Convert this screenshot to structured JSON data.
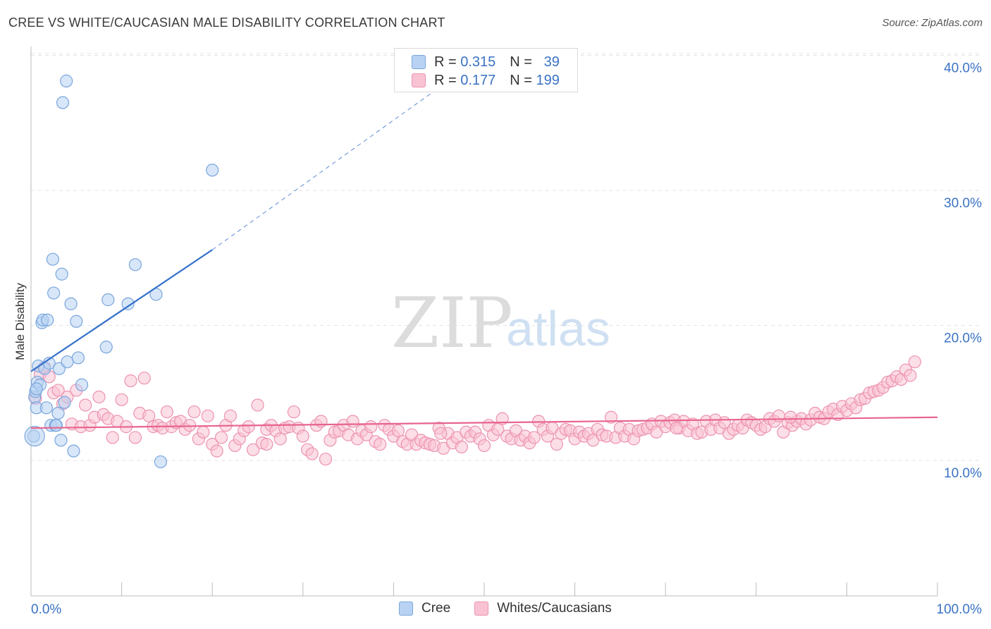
{
  "title": "CREE VS WHITE/CAUCASIAN MALE DISABILITY CORRELATION CHART",
  "source": "Source: ZipAtlas.com",
  "watermark": {
    "zip": "ZIP",
    "atlas": "atlas"
  },
  "colors": {
    "cree_fill": "#b7d2f2",
    "cree_stroke": "#7aa6dd",
    "cree_line": "#3370cc",
    "white_fill": "#f9c2d3",
    "white_stroke": "#ec93b0",
    "white_line": "#e7648f",
    "axis_text": "#3a72c4",
    "grid": "#e3e3e3"
  },
  "legend": {
    "rows": [
      {
        "r_label": "R =",
        "r_value": "0.315",
        "n_label": "N =",
        "n_value": "39"
      },
      {
        "r_label": "R =",
        "r_value": "0.177",
        "n_label": "N =",
        "n_value": "199"
      }
    ]
  },
  "bottom_legend": [
    "Cree",
    "Whites/Caucasians"
  ],
  "chart_data": {
    "type": "scatter",
    "title": "CREE VS WHITE/CAUCASIAN MALE DISABILITY CORRELATION CHART",
    "xlabel": "",
    "ylabel": "Male Disability",
    "xlim": [
      0,
      100
    ],
    "ylim": [
      0,
      42
    ],
    "x_tick_labels": [
      "0.0%",
      "100.0%"
    ],
    "y_ticks": [
      10,
      20,
      30,
      40
    ],
    "y_tick_labels": [
      "10.0%",
      "20.0%",
      "30.0%",
      "40.0%"
    ],
    "legend_position": "top-center",
    "series": [
      {
        "name": "Cree",
        "R": 0.315,
        "N": 39,
        "trend": {
          "x0": 0.0,
          "y0": 16.6,
          "x1": 20.0,
          "y1": 25.6,
          "dashed_to_x": 50.0,
          "dashed_to_y": 40.0
        },
        "points": [
          [
            0.3,
            11.8
          ],
          [
            0.4,
            14.7
          ],
          [
            0.5,
            15.1
          ],
          [
            0.6,
            13.9
          ],
          [
            0.7,
            15.8
          ],
          [
            0.8,
            17.0
          ],
          [
            1.0,
            15.6
          ],
          [
            1.2,
            20.2
          ],
          [
            1.3,
            20.4
          ],
          [
            1.5,
            16.8
          ],
          [
            1.7,
            13.9
          ],
          [
            1.8,
            20.4
          ],
          [
            2.0,
            17.2
          ],
          [
            2.2,
            12.6
          ],
          [
            2.4,
            24.9
          ],
          [
            2.5,
            22.4
          ],
          [
            2.7,
            12.6
          ],
          [
            2.8,
            12.6
          ],
          [
            3.0,
            13.5
          ],
          [
            3.1,
            16.8
          ],
          [
            3.3,
            11.5
          ],
          [
            3.4,
            23.8
          ],
          [
            3.5,
            36.5
          ],
          [
            3.7,
            14.3
          ],
          [
            3.9,
            38.1
          ],
          [
            4.0,
            17.3
          ],
          [
            4.4,
            21.6
          ],
          [
            4.7,
            10.7
          ],
          [
            5.0,
            20.3
          ],
          [
            5.2,
            17.6
          ],
          [
            5.6,
            15.6
          ],
          [
            8.3,
            18.4
          ],
          [
            8.5,
            21.9
          ],
          [
            10.7,
            21.6
          ],
          [
            11.5,
            24.5
          ],
          [
            13.8,
            22.3
          ],
          [
            14.3,
            9.9
          ],
          [
            20.0,
            31.5
          ],
          [
            0.6,
            15.3
          ]
        ]
      },
      {
        "name": "Whites/Caucasians",
        "R": 0.177,
        "N": 199,
        "trend": {
          "x0": 0.0,
          "y0": 12.4,
          "x1": 100.0,
          "y1": 13.2
        },
        "points": [
          [
            0.5,
            14.6
          ],
          [
            1.0,
            16.4
          ],
          [
            1.5,
            16.9
          ],
          [
            2.0,
            16.2
          ],
          [
            2.5,
            15.0
          ],
          [
            3.0,
            15.2
          ],
          [
            3.5,
            14.2
          ],
          [
            4.0,
            14.7
          ],
          [
            4.5,
            12.7
          ],
          [
            5.0,
            15.2
          ],
          [
            5.5,
            12.5
          ],
          [
            6.0,
            14.1
          ],
          [
            6.5,
            12.6
          ],
          [
            7.0,
            13.2
          ],
          [
            7.5,
            14.7
          ],
          [
            8.0,
            13.4
          ],
          [
            8.5,
            13.1
          ],
          [
            9.0,
            11.7
          ],
          [
            9.5,
            12.9
          ],
          [
            10.0,
            14.5
          ],
          [
            10.5,
            12.5
          ],
          [
            11.0,
            15.9
          ],
          [
            11.5,
            11.7
          ],
          [
            12.0,
            13.5
          ],
          [
            12.5,
            16.1
          ],
          [
            13.0,
            13.3
          ],
          [
            13.5,
            12.5
          ],
          [
            14.0,
            12.6
          ],
          [
            14.5,
            12.4
          ],
          [
            15.0,
            13.6
          ],
          [
            15.5,
            12.5
          ],
          [
            16.0,
            12.8
          ],
          [
            16.5,
            12.9
          ],
          [
            17.0,
            12.3
          ],
          [
            17.5,
            12.6
          ],
          [
            18.0,
            13.6
          ],
          [
            18.5,
            11.6
          ],
          [
            19.0,
            12.1
          ],
          [
            19.5,
            13.3
          ],
          [
            20.0,
            11.2
          ],
          [
            20.5,
            10.7
          ],
          [
            21.0,
            11.7
          ],
          [
            21.5,
            12.6
          ],
          [
            22.0,
            13.3
          ],
          [
            22.5,
            11.1
          ],
          [
            23.0,
            11.6
          ],
          [
            23.5,
            12.2
          ],
          [
            24.0,
            12.5
          ],
          [
            24.5,
            10.8
          ],
          [
            25.0,
            14.1
          ],
          [
            25.5,
            11.3
          ],
          [
            26.0,
            12.3
          ],
          [
            26.5,
            12.6
          ],
          [
            27.0,
            12.2
          ],
          [
            27.5,
            11.6
          ],
          [
            28.0,
            12.4
          ],
          [
            28.5,
            12.5
          ],
          [
            29.0,
            13.6
          ],
          [
            29.5,
            12.4
          ],
          [
            30.0,
            11.8
          ],
          [
            30.5,
            10.8
          ],
          [
            31.0,
            10.5
          ],
          [
            31.5,
            12.6
          ],
          [
            32.0,
            12.9
          ],
          [
            32.5,
            10.1
          ],
          [
            33.0,
            11.5
          ],
          [
            33.5,
            12.1
          ],
          [
            34.0,
            12.2
          ],
          [
            34.5,
            12.6
          ],
          [
            35.0,
            11.9
          ],
          [
            35.5,
            12.9
          ],
          [
            36.0,
            11.6
          ],
          [
            36.5,
            12.2
          ],
          [
            37.0,
            11.9
          ],
          [
            37.5,
            12.5
          ],
          [
            38.0,
            11.4
          ],
          [
            38.5,
            11.2
          ],
          [
            39.0,
            12.6
          ],
          [
            39.5,
            12.3
          ],
          [
            40.0,
            11.8
          ],
          [
            40.5,
            12.2
          ],
          [
            41.0,
            11.4
          ],
          [
            41.5,
            11.2
          ],
          [
            42.0,
            11.9
          ],
          [
            42.5,
            11.2
          ],
          [
            43.0,
            11.5
          ],
          [
            43.5,
            11.3
          ],
          [
            44.0,
            11.2
          ],
          [
            44.5,
            11.1
          ],
          [
            45.0,
            12.4
          ],
          [
            45.5,
            10.9
          ],
          [
            46.0,
            12.0
          ],
          [
            46.5,
            11.3
          ],
          [
            47.0,
            11.7
          ],
          [
            47.5,
            11.0
          ],
          [
            48.0,
            12.1
          ],
          [
            48.5,
            11.8
          ],
          [
            49.0,
            12.1
          ],
          [
            49.5,
            11.6
          ],
          [
            50.0,
            11.1
          ],
          [
            50.5,
            12.6
          ],
          [
            51.0,
            11.9
          ],
          [
            51.5,
            12.3
          ],
          [
            52.0,
            13.1
          ],
          [
            52.5,
            11.8
          ],
          [
            53.0,
            11.6
          ],
          [
            53.5,
            12.2
          ],
          [
            54.0,
            11.5
          ],
          [
            54.5,
            11.8
          ],
          [
            55.0,
            11.3
          ],
          [
            55.5,
            11.7
          ],
          [
            56.0,
            12.9
          ],
          [
            56.5,
            12.3
          ],
          [
            57.0,
            11.8
          ],
          [
            57.5,
            12.4
          ],
          [
            58.0,
            11.2
          ],
          [
            58.5,
            12.0
          ],
          [
            59.0,
            12.3
          ],
          [
            59.5,
            12.2
          ],
          [
            60.0,
            11.6
          ],
          [
            60.5,
            12.1
          ],
          [
            61.0,
            11.8
          ],
          [
            61.5,
            12.0
          ],
          [
            62.0,
            11.5
          ],
          [
            62.5,
            12.3
          ],
          [
            63.0,
            11.9
          ],
          [
            63.5,
            11.8
          ],
          [
            64.0,
            13.2
          ],
          [
            64.5,
            11.7
          ],
          [
            65.0,
            12.4
          ],
          [
            65.5,
            11.8
          ],
          [
            66.0,
            12.3
          ],
          [
            66.5,
            11.6
          ],
          [
            67.0,
            12.2
          ],
          [
            67.5,
            12.3
          ],
          [
            68.0,
            12.4
          ],
          [
            68.5,
            12.7
          ],
          [
            69.0,
            12.1
          ],
          [
            69.5,
            12.9
          ],
          [
            70.0,
            12.5
          ],
          [
            70.5,
            12.8
          ],
          [
            71.0,
            13.0
          ],
          [
            71.5,
            12.4
          ],
          [
            72.0,
            12.9
          ],
          [
            72.5,
            12.2
          ],
          [
            73.0,
            12.7
          ],
          [
            73.5,
            12.0
          ],
          [
            74.0,
            12.1
          ],
          [
            74.5,
            12.9
          ],
          [
            75.0,
            12.3
          ],
          [
            75.5,
            13.0
          ],
          [
            76.0,
            12.4
          ],
          [
            76.5,
            12.8
          ],
          [
            77.0,
            12.0
          ],
          [
            77.5,
            12.3
          ],
          [
            78.0,
            12.6
          ],
          [
            78.5,
            12.4
          ],
          [
            79.0,
            13.0
          ],
          [
            79.5,
            12.8
          ],
          [
            80.0,
            12.6
          ],
          [
            80.5,
            12.3
          ],
          [
            81.0,
            12.5
          ],
          [
            81.5,
            13.1
          ],
          [
            82.0,
            12.9
          ],
          [
            82.5,
            13.3
          ],
          [
            83.0,
            12.1
          ],
          [
            83.5,
            12.8
          ],
          [
            84.0,
            12.6
          ],
          [
            84.5,
            12.9
          ],
          [
            85.0,
            13.1
          ],
          [
            85.5,
            12.7
          ],
          [
            86.0,
            13.0
          ],
          [
            86.5,
            13.5
          ],
          [
            87.0,
            13.2
          ],
          [
            87.5,
            13.1
          ],
          [
            88.0,
            13.6
          ],
          [
            88.5,
            13.8
          ],
          [
            89.0,
            13.4
          ],
          [
            89.5,
            14.0
          ],
          [
            90.0,
            13.7
          ],
          [
            90.5,
            14.2
          ],
          [
            91.0,
            13.9
          ],
          [
            91.5,
            14.5
          ],
          [
            92.0,
            14.6
          ],
          [
            92.5,
            15.0
          ],
          [
            93.0,
            15.1
          ],
          [
            93.5,
            15.2
          ],
          [
            94.0,
            15.4
          ],
          [
            94.5,
            15.8
          ],
          [
            95.0,
            15.9
          ],
          [
            95.5,
            16.2
          ],
          [
            96.0,
            16.0
          ],
          [
            96.5,
            16.7
          ],
          [
            97.0,
            16.3
          ],
          [
            97.5,
            17.3
          ],
          [
            26.0,
            11.2
          ],
          [
            45.2,
            12.0
          ],
          [
            71.2,
            12.4
          ],
          [
            83.8,
            13.2
          ]
        ]
      }
    ]
  }
}
